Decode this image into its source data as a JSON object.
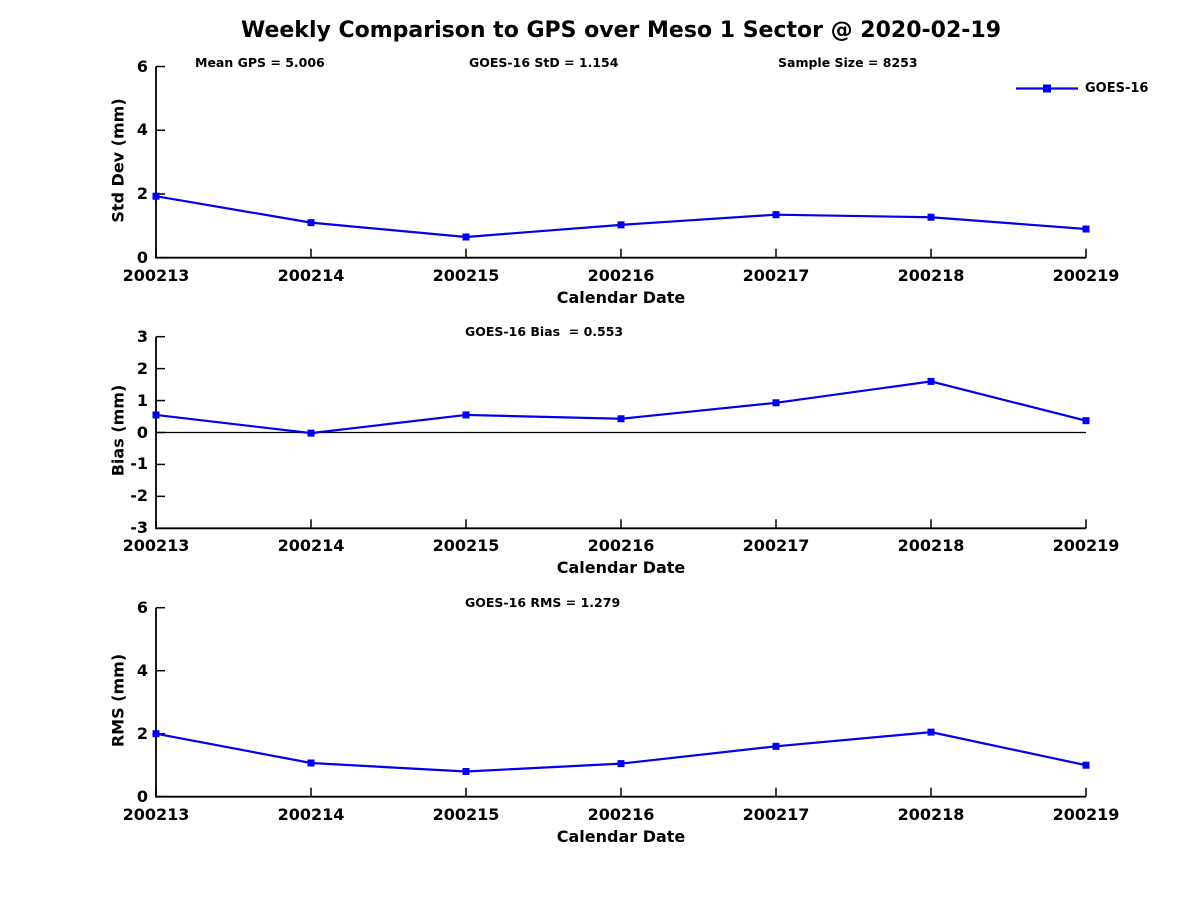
{
  "figure": {
    "title": "Weekly Comparison to GPS over Meso 1 Sector @ 2020-02-19",
    "background_color": "#ffffff",
    "line_color": "#0000EE",
    "axis_color": "#000000"
  },
  "chart_data": [
    {
      "type": "line",
      "name": "std-dev-vs-date",
      "categories": [
        "200213",
        "200214",
        "200215",
        "200216",
        "200217",
        "200218",
        "200219"
      ],
      "series": [
        {
          "name": "GOES-16",
          "values": [
            1.93,
            1.1,
            0.65,
            1.03,
            1.35,
            1.27,
            0.9
          ]
        }
      ],
      "xlabel": "Calendar Date",
      "ylabel": "Std Dev (mm)",
      "ylim": [
        0,
        6
      ],
      "yticks": [
        0,
        2,
        4,
        6
      ],
      "grid": false,
      "zero_line": false,
      "annotations": [
        "Mean GPS = 5.006",
        "GOES-16 StD = 1.154",
        "Sample Size = 8253"
      ],
      "legend": {
        "label": "GOES-16",
        "position": "top-right",
        "marker": "square"
      }
    },
    {
      "type": "line",
      "name": "bias-vs-date",
      "categories": [
        "200213",
        "200214",
        "200215",
        "200216",
        "200217",
        "200218",
        "200219"
      ],
      "series": [
        {
          "name": "GOES-16",
          "values": [
            0.55,
            -0.02,
            0.55,
            0.43,
            0.93,
            1.6,
            0.37
          ]
        }
      ],
      "xlabel": "Calendar Date",
      "ylabel": "Bias (mm)",
      "ylim": [
        -3,
        3
      ],
      "yticks": [
        -3,
        -2,
        -1,
        0,
        1,
        2,
        3
      ],
      "grid": false,
      "zero_line": true,
      "annotations": [
        "GOES-16 Bias  = 0.553"
      ],
      "legend": null
    },
    {
      "type": "line",
      "name": "rms-vs-date",
      "categories": [
        "200213",
        "200214",
        "200215",
        "200216",
        "200217",
        "200218",
        "200219"
      ],
      "series": [
        {
          "name": "GOES-16",
          "values": [
            2.0,
            1.07,
            0.8,
            1.05,
            1.6,
            2.05,
            1.0
          ]
        }
      ],
      "xlabel": "Calendar Date",
      "ylabel": "RMS (mm)",
      "ylim": [
        0,
        6
      ],
      "yticks": [
        0,
        2,
        4,
        6
      ],
      "grid": false,
      "zero_line": false,
      "annotations": [
        "GOES-16 RMS = 1.279"
      ],
      "legend": null
    }
  ]
}
